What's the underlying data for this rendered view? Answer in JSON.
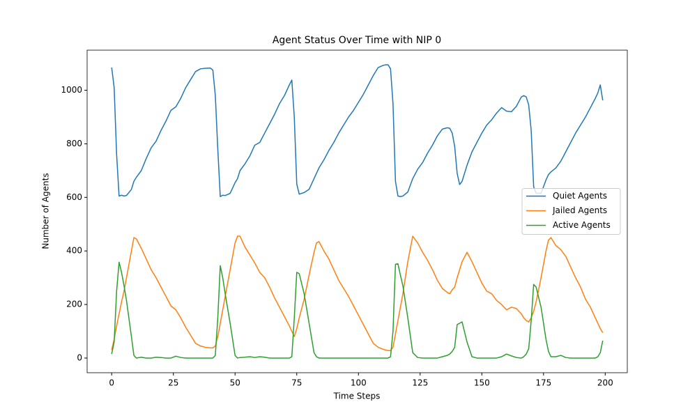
{
  "chart_data": {
    "type": "line",
    "title": "Agent Status Over Time with NIP 0",
    "x_label": "Time Steps",
    "y_label": "Number of Agents",
    "x": [
      0,
      1,
      2,
      3,
      4,
      5,
      6,
      8,
      9,
      10,
      12,
      14,
      16,
      18,
      20,
      22,
      24,
      26,
      28,
      30,
      32,
      34,
      36,
      38,
      40,
      41,
      42,
      43,
      44,
      45,
      46,
      48,
      50,
      51,
      52,
      54,
      56,
      58,
      60,
      62,
      64,
      66,
      68,
      70,
      72,
      73,
      74,
      75,
      76,
      78,
      80,
      82,
      83,
      84,
      86,
      88,
      90,
      92,
      94,
      96,
      98,
      100,
      102,
      104,
      106,
      108,
      110,
      111,
      112,
      113,
      114,
      115,
      116,
      117,
      118,
      120,
      122,
      124,
      126,
      128,
      130,
      132,
      134,
      136,
      137,
      138,
      139,
      140,
      141,
      142,
      144,
      146,
      148,
      150,
      152,
      154,
      156,
      158,
      160,
      162,
      164,
      166,
      167,
      168,
      169,
      170,
      171,
      172,
      174,
      176,
      177,
      178,
      180,
      182,
      184,
      186,
      188,
      190,
      192,
      194,
      196,
      197,
      198,
      199
    ],
    "series": [
      {
        "name": "Quiet Agents",
        "color": "#1f77b4",
        "values": [
          1085,
          1010,
          760,
          605,
          608,
          605,
          607,
          630,
          660,
          675,
          700,
          745,
          785,
          810,
          850,
          885,
          925,
          938,
          970,
          1010,
          1040,
          1070,
          1080,
          1082,
          1083,
          1075,
          980,
          780,
          603,
          608,
          607,
          615,
          655,
          670,
          700,
          725,
          755,
          795,
          805,
          840,
          875,
          910,
          950,
          980,
          1020,
          1038,
          900,
          650,
          612,
          618,
          630,
          670,
          690,
          710,
          740,
          775,
          805,
          840,
          870,
          900,
          925,
          955,
          985,
          1020,
          1055,
          1085,
          1093,
          1095,
          1095,
          1080,
          950,
          660,
          605,
          603,
          605,
          620,
          670,
          705,
          730,
          765,
          795,
          830,
          855,
          860,
          858,
          840,
          790,
          690,
          648,
          660,
          720,
          770,
          805,
          840,
          870,
          890,
          915,
          935,
          922,
          920,
          940,
          975,
          980,
          975,
          945,
          850,
          640,
          615,
          615,
          665,
          685,
          695,
          710,
          735,
          770,
          805,
          840,
          870,
          900,
          935,
          970,
          990,
          1020,
          962
        ]
      },
      {
        "name": "Jailed Agents",
        "color": "#ff7f0e",
        "values": [
          30,
          70,
          120,
          165,
          210,
          250,
          300,
          400,
          450,
          445,
          410,
          370,
          330,
          300,
          265,
          230,
          195,
          180,
          150,
          115,
          85,
          55,
          45,
          40,
          38,
          38,
          45,
          80,
          130,
          180,
          230,
          330,
          430,
          455,
          455,
          415,
          385,
          355,
          320,
          300,
          265,
          225,
          190,
          155,
          120,
          100,
          80,
          110,
          150,
          220,
          310,
          395,
          430,
          435,
          400,
          370,
          330,
          290,
          260,
          230,
          195,
          160,
          125,
          90,
          55,
          40,
          33,
          30,
          28,
          28,
          40,
          90,
          140,
          190,
          240,
          360,
          455,
          430,
          395,
          365,
          330,
          290,
          260,
          245,
          240,
          255,
          265,
          300,
          330,
          360,
          395,
          360,
          320,
          280,
          250,
          240,
          215,
          200,
          180,
          190,
          185,
          165,
          150,
          140,
          135,
          150,
          175,
          210,
          300,
          400,
          440,
          450,
          420,
          405,
          380,
          340,
          300,
          265,
          220,
          190,
          150,
          130,
          110,
          95
        ]
      },
      {
        "name": "Active Agents",
        "color": "#2ca02c",
        "values": [
          15,
          60,
          250,
          358,
          320,
          270,
          215,
          80,
          10,
          0,
          3,
          0,
          0,
          3,
          2,
          0,
          0,
          7,
          2,
          0,
          0,
          0,
          0,
          0,
          0,
          0,
          10,
          150,
          345,
          300,
          240,
          130,
          10,
          0,
          2,
          3,
          5,
          2,
          5,
          3,
          0,
          0,
          0,
          0,
          0,
          5,
          150,
          320,
          315,
          240,
          130,
          20,
          5,
          0,
          0,
          0,
          0,
          0,
          0,
          0,
          0,
          0,
          0,
          0,
          0,
          0,
          0,
          0,
          0,
          5,
          100,
          350,
          352,
          310,
          270,
          150,
          20,
          2,
          0,
          0,
          0,
          0,
          5,
          10,
          15,
          25,
          40,
          125,
          130,
          135,
          60,
          5,
          0,
          0,
          0,
          0,
          0,
          5,
          15,
          8,
          2,
          0,
          5,
          15,
          35,
          140,
          275,
          265,
          190,
          70,
          25,
          5,
          5,
          10,
          2,
          0,
          0,
          0,
          0,
          0,
          0,
          5,
          20,
          65
        ]
      }
    ],
    "xlim": [
      -9.95,
      208.95
    ],
    "ylim": [
      -54.75,
      1149.75
    ],
    "xticks": [
      0,
      25,
      50,
      75,
      100,
      125,
      150,
      175,
      200
    ],
    "yticks": [
      0,
      200,
      400,
      600,
      800,
      1000
    ],
    "legend": "center right"
  }
}
